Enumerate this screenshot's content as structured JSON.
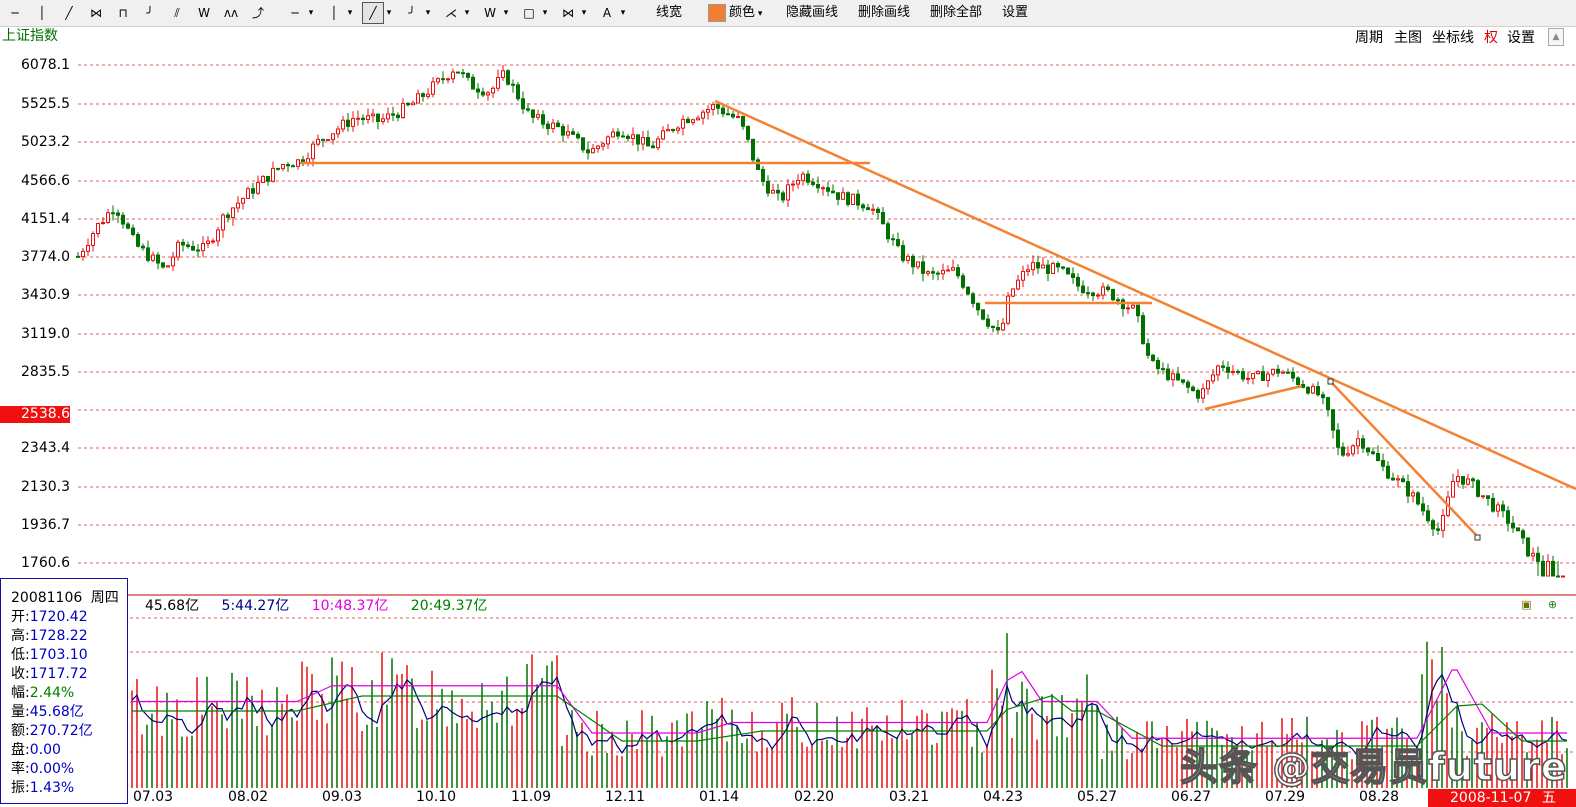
{
  "toolbar": {
    "tools": [
      "─",
      "▾",
      "│",
      "▾",
      "╱",
      "▾",
      "╯",
      "▾",
      "⋌",
      "▾",
      "W",
      "▾",
      "□",
      "▾",
      "⋈",
      "▾",
      "A",
      "▾"
    ],
    "quick_icons": [
      "─",
      "│",
      "╱",
      "⋈",
      "⊓",
      "╯",
      "⫽",
      "W",
      "ʌʌ",
      "⤴"
    ],
    "line_width": "线宽",
    "color": "颜色",
    "hide_lines": "隐藏画线",
    "delete_line": "删除画线",
    "delete_all": "删除全部",
    "settings": "设置",
    "color_value": "#f08030"
  },
  "chart_title": "上证指数",
  "top_menu": {
    "period": "周期",
    "main": "主图",
    "axis": "坐标线",
    "rights": "权",
    "settings": "设置"
  },
  "price_axis": [
    "6078.1",
    "5525.5",
    "5023.2",
    "4566.6",
    "4151.4",
    "3774.0",
    "3430.9",
    "3119.0",
    "2835.5",
    "2343.4",
    "2130.3",
    "1936.7",
    "1760.6"
  ],
  "current_price": "2538.6",
  "volume_header": {
    "total": "45.68亿",
    "ma5": "5:44.27亿",
    "ma10": "10:48.37亿",
    "ma20": "20:49.37亿"
  },
  "info": {
    "date": "20081106",
    "weekday": "周四",
    "rows": [
      {
        "k": "开:",
        "v": "1720.42"
      },
      {
        "k": "高:",
        "v": "1728.22"
      },
      {
        "k": "低:",
        "v": "1703.10"
      },
      {
        "k": "收:",
        "v": "1717.72"
      },
      {
        "k": "幅:",
        "v": "2.44%"
      },
      {
        "k": "量:",
        "v": "45.68亿"
      },
      {
        "k": "额:",
        "v": "270.72亿"
      },
      {
        "k": "盘:",
        "v": "0.00"
      },
      {
        "k": "率:",
        "v": "0.00%"
      },
      {
        "k": "振:",
        "v": "1.43%"
      }
    ]
  },
  "x_axis": [
    "07.03",
    "08.02",
    "09.03",
    "10.10",
    "11.09",
    "12.11",
    "01.14",
    "02.20",
    "03.21",
    "04.23",
    "05.27",
    "06.27",
    "07.29",
    "08.28"
  ],
  "selected_date": "2008-11-07",
  "selected_day_short": "五",
  "watermark": "头条 @交易员future",
  "colors": {
    "up": "#e81010",
    "down": "#007000",
    "trendline": "#f58232",
    "ma5": "#000080",
    "ma10": "#e000e0",
    "ma20": "#008000"
  }
}
